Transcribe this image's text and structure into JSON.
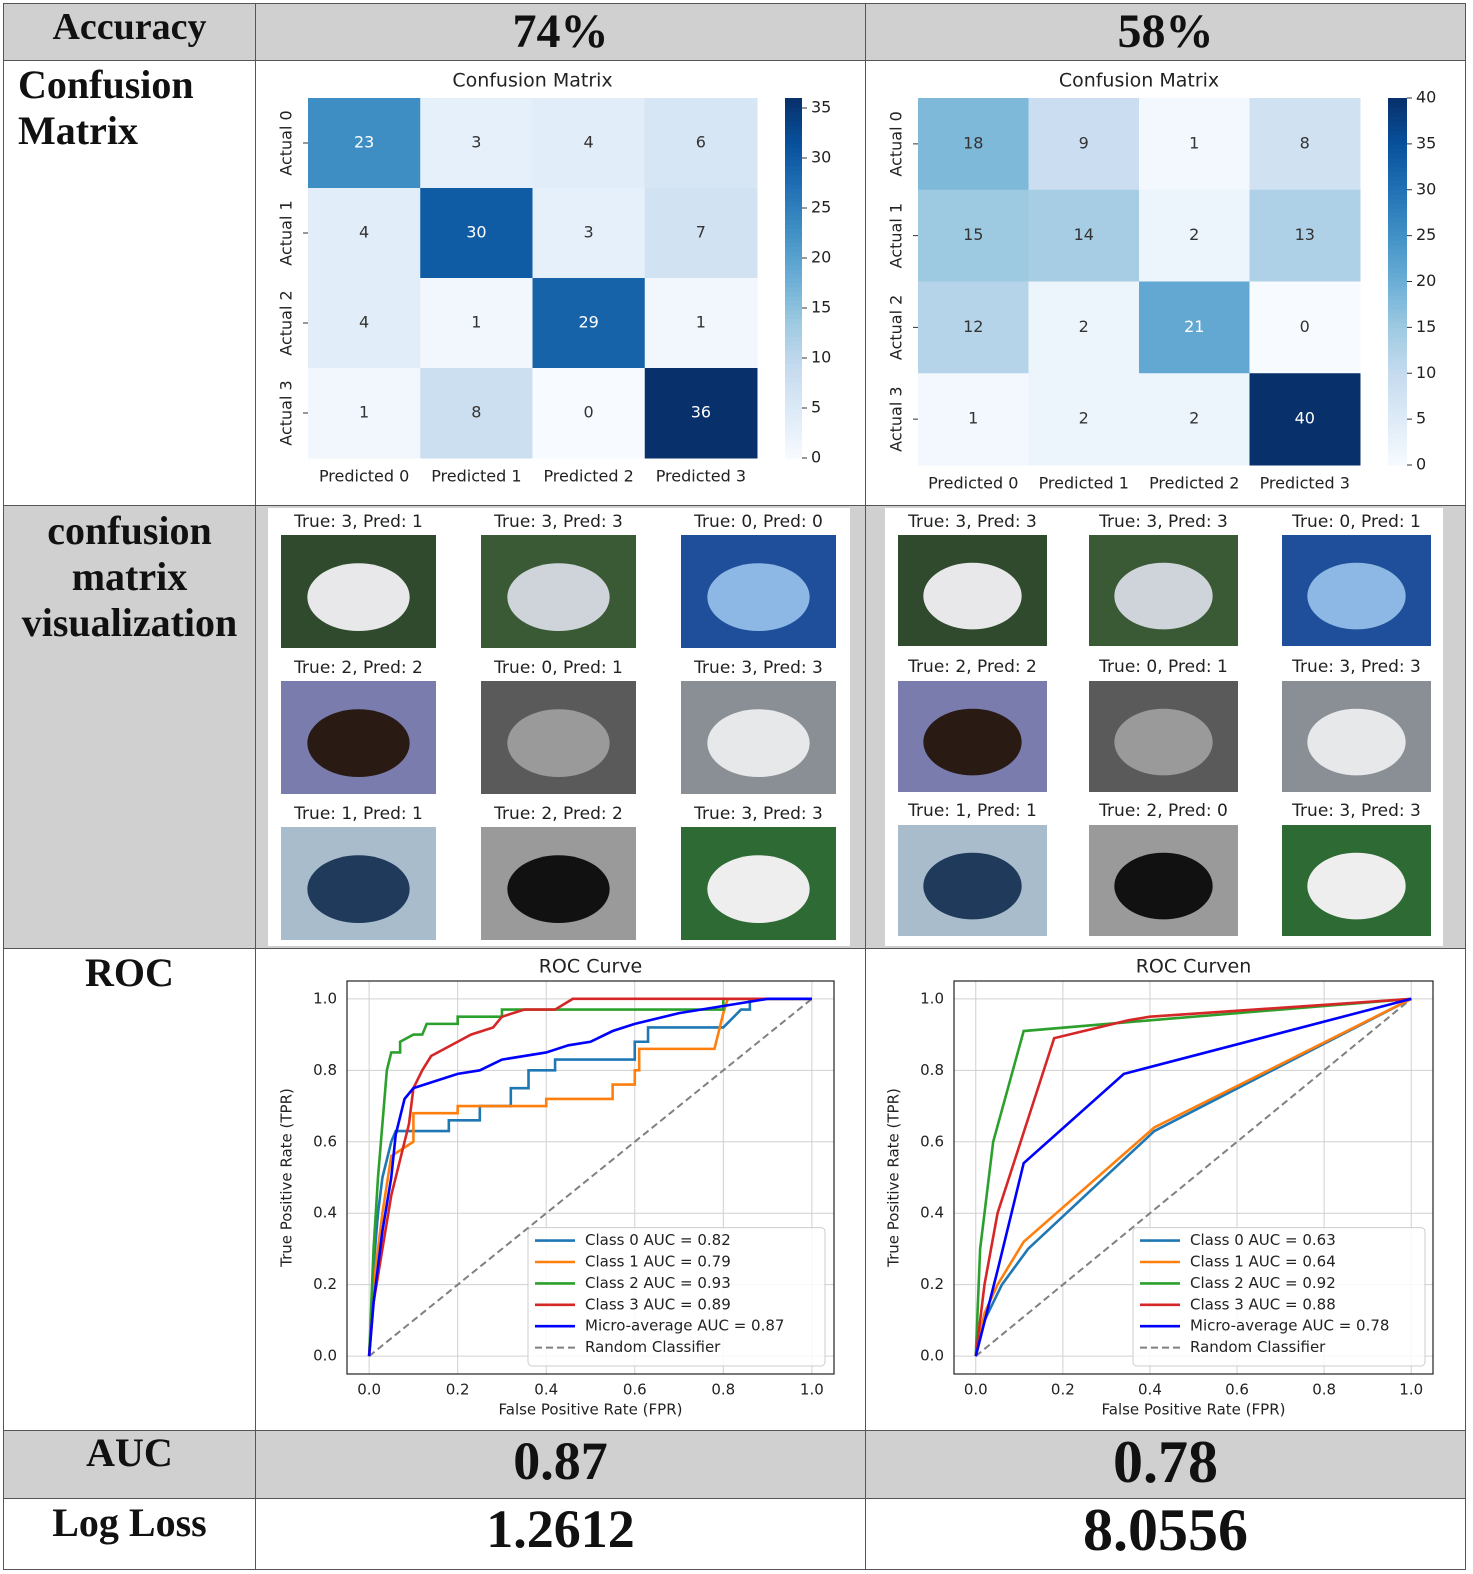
{
  "table": {
    "rows": [
      [
        "Accuracy",
        "74%",
        "58%"
      ],
      [
        "Confusion Matrix"
      ],
      [
        "confusion matrix visualization"
      ],
      [
        "ROC"
      ],
      [
        "AUC",
        "0.87",
        "0.78"
      ],
      [
        "Log Loss",
        "1.2612",
        "8.0556"
      ]
    ]
  },
  "galleries": [
    {
      "titles": [
        "True: 3, Pred: 1",
        "True: 3, Pred: 3",
        "True: 0, Pred: 0",
        "True: 2, Pred: 2",
        "True: 0, Pred: 1",
        "True: 3, Pred: 3",
        "True: 1, Pred: 1",
        "True: 2, Pred: 2",
        "True: 3, Pred: 3"
      ]
    },
    {
      "titles": [
        "True: 3, Pred: 3",
        "True: 3, Pred: 3",
        "True: 0, Pred: 1",
        "True: 2, Pred: 2",
        "True: 0, Pred: 1",
        "True: 3, Pred: 3",
        "True: 1, Pred: 1",
        "True: 2, Pred: 0",
        "True: 3, Pred: 3"
      ]
    }
  ],
  "chart_data": [
    {
      "type": "heatmap",
      "title": "Confusion Matrix",
      "x_categories": [
        "Predicted 0",
        "Predicted 1",
        "Predicted 2",
        "Predicted 3"
      ],
      "y_categories": [
        "Actual 0",
        "Actual 1",
        "Actual 2",
        "Actual 3"
      ],
      "values": [
        [
          23,
          3,
          4,
          6
        ],
        [
          4,
          30,
          3,
          7
        ],
        [
          4,
          1,
          29,
          1
        ],
        [
          1,
          8,
          0,
          36
        ]
      ],
      "colorbar_lim": [
        0,
        36
      ],
      "colorbar_ticks": [
        0,
        5,
        10,
        15,
        20,
        25,
        30,
        35
      ],
      "colormap": [
        "#f7fbff",
        "#deebf7",
        "#c6dbef",
        "#9ecae1",
        "#6baed6",
        "#4292c6",
        "#2171b5",
        "#08519c",
        "#08306b"
      ]
    },
    {
      "type": "heatmap",
      "title": "Confusion Matrix",
      "x_categories": [
        "Predicted 0",
        "Predicted 1",
        "Predicted 2",
        "Predicted 3"
      ],
      "y_categories": [
        "Actual 0",
        "Actual 1",
        "Actual 2",
        "Actual 3"
      ],
      "values": [
        [
          18,
          9,
          1,
          8
        ],
        [
          15,
          14,
          2,
          13
        ],
        [
          12,
          2,
          21,
          0
        ],
        [
          1,
          2,
          2,
          40
        ]
      ],
      "colorbar_lim": [
        0,
        40
      ],
      "colorbar_ticks": [
        0,
        5,
        10,
        15,
        20,
        25,
        30,
        35,
        40
      ],
      "colormap": [
        "#f7fbff",
        "#deebf7",
        "#c6dbef",
        "#9ecae1",
        "#6baed6",
        "#4292c6",
        "#2171b5",
        "#08519c",
        "#08306b"
      ]
    },
    {
      "type": "line",
      "title": "ROC Curve",
      "x_label": "False Positive Rate (FPR)",
      "y_label": "True Positive Rate (TPR)",
      "xlim": [
        -0.05,
        1.05
      ],
      "ylim": [
        -0.05,
        1.05
      ],
      "xticks": [
        {
          "value": 0,
          "label": "0.0"
        },
        0.2,
        0.4,
        0.6,
        0.8,
        {
          "value": 1,
          "label": "1.0"
        }
      ],
      "yticks": [
        {
          "value": 0,
          "label": "0.0"
        },
        0.2,
        0.4,
        0.6,
        0.8,
        {
          "value": 1,
          "label": "1.0"
        }
      ],
      "grid": true,
      "legend": "lower right",
      "series": [
        {
          "name": "Class 0 AUC = 0.82",
          "color": "#1f77b4",
          "x": [
            0,
            0.005,
            0.01,
            0.02,
            0.03,
            0.04,
            0.05,
            0.06,
            0.18,
            0.18,
            0.25,
            0.25,
            0.32,
            0.32,
            0.36,
            0.36,
            0.42,
            0.42,
            0.6,
            0.6,
            0.63,
            0.63,
            0.8,
            0.84,
            0.86,
            0.86,
            1
          ],
          "values": [
            0,
            0.1,
            0.25,
            0.4,
            0.5,
            0.55,
            0.6,
            0.63,
            0.63,
            0.66,
            0.66,
            0.7,
            0.7,
            0.75,
            0.75,
            0.8,
            0.8,
            0.83,
            0.83,
            0.88,
            0.88,
            0.92,
            0.92,
            0.97,
            0.97,
            1,
            1
          ]
        },
        {
          "name": "Class 1 AUC = 0.79",
          "color": "#ff7f0e",
          "x": [
            0,
            0.01,
            0.03,
            0.05,
            0.1,
            0.1,
            0.2,
            0.2,
            0.4,
            0.4,
            0.55,
            0.55,
            0.6,
            0.6,
            0.61,
            0.61,
            0.78,
            0.8,
            0.81,
            1
          ],
          "values": [
            0,
            0.2,
            0.4,
            0.56,
            0.6,
            0.68,
            0.68,
            0.7,
            0.7,
            0.72,
            0.72,
            0.76,
            0.76,
            0.8,
            0.8,
            0.86,
            0.86,
            0.96,
            1,
            1
          ]
        },
        {
          "name": "Class 2 AUC = 0.93",
          "color": "#2ca02c",
          "x": [
            0,
            0.01,
            0.02,
            0.03,
            0.04,
            0.05,
            0.07,
            0.07,
            0.1,
            0.12,
            0.13,
            0.2,
            0.2,
            0.3,
            0.3,
            0.8,
            0.8,
            1
          ],
          "values": [
            0,
            0.3,
            0.5,
            0.65,
            0.8,
            0.85,
            0.85,
            0.88,
            0.9,
            0.9,
            0.93,
            0.93,
            0.95,
            0.95,
            0.97,
            0.97,
            1,
            1
          ]
        },
        {
          "name": "Class 3 AUC = 0.89",
          "color": "#d62728",
          "x": [
            0,
            0.01,
            0.03,
            0.05,
            0.07,
            0.09,
            0.1,
            0.12,
            0.14,
            0.17,
            0.2,
            0.23,
            0.28,
            0.3,
            0.35,
            0.42,
            0.46,
            1
          ],
          "values": [
            0,
            0.15,
            0.3,
            0.45,
            0.55,
            0.65,
            0.75,
            0.8,
            0.84,
            0.86,
            0.88,
            0.9,
            0.92,
            0.95,
            0.97,
            0.97,
            1,
            1
          ]
        },
        {
          "name": "Micro-average AUC = 0.87",
          "color": "#0000ff",
          "x": [
            0,
            0.01,
            0.03,
            0.05,
            0.06,
            0.08,
            0.1,
            0.15,
            0.2,
            0.25,
            0.3,
            0.4,
            0.45,
            0.5,
            0.55,
            0.6,
            0.7,
            0.8,
            0.9,
            1
          ],
          "values": [
            0,
            0.15,
            0.35,
            0.5,
            0.62,
            0.72,
            0.75,
            0.77,
            0.79,
            0.8,
            0.83,
            0.85,
            0.87,
            0.88,
            0.91,
            0.93,
            0.96,
            0.98,
            1,
            1
          ]
        },
        {
          "name": "Random Classifier",
          "color": "#808080",
          "dashed": true,
          "x": [
            0,
            1
          ],
          "values": [
            0,
            1
          ]
        }
      ]
    },
    {
      "type": "line",
      "title": "ROC Curven",
      "x_label": "False Positive Rate (FPR)",
      "y_label": "True Positive Rate (TPR)",
      "xlim": [
        -0.05,
        1.05
      ],
      "ylim": [
        -0.05,
        1.05
      ],
      "xticks": [
        {
          "value": 0,
          "label": "0.0"
        },
        0.2,
        0.4,
        0.6,
        0.8,
        {
          "value": 1,
          "label": "1.0"
        }
      ],
      "yticks": [
        {
          "value": 0,
          "label": "0.0"
        },
        0.2,
        0.4,
        0.6,
        0.8,
        {
          "value": 1,
          "label": "1.0"
        }
      ],
      "grid": true,
      "legend": "lower right",
      "series": [
        {
          "name": "Class 0 AUC = 0.63",
          "color": "#1f77b4",
          "x": [
            0,
            0.02,
            0.06,
            0.12,
            0.41,
            1
          ],
          "values": [
            0,
            0.1,
            0.2,
            0.3,
            0.63,
            1
          ]
        },
        {
          "name": "Class 1 AUC = 0.64",
          "color": "#ff7f0e",
          "x": [
            0,
            0.02,
            0.05,
            0.11,
            0.41,
            1
          ],
          "values": [
            0,
            0.12,
            0.2,
            0.32,
            0.64,
            1
          ]
        },
        {
          "name": "Class 2 AUC = 0.92",
          "color": "#2ca02c",
          "x": [
            0,
            0.01,
            0.04,
            0.11,
            0.4,
            1
          ],
          "values": [
            0,
            0.3,
            0.6,
            0.91,
            0.94,
            1
          ]
        },
        {
          "name": "Class 3 AUC = 0.88",
          "color": "#d62728",
          "x": [
            0,
            0.02,
            0.05,
            0.18,
            0.35,
            0.4,
            1
          ],
          "values": [
            0,
            0.2,
            0.4,
            0.89,
            0.94,
            0.95,
            1
          ]
        },
        {
          "name": "Micro-average AUC = 0.78",
          "color": "#0000ff",
          "x": [
            0,
            0.05,
            0.11,
            0.34,
            1
          ],
          "values": [
            0,
            0.24,
            0.54,
            0.79,
            1
          ]
        },
        {
          "name": "Random Classifier",
          "color": "#808080",
          "dashed": true,
          "x": [
            0,
            1
          ],
          "values": [
            0,
            1
          ]
        }
      ]
    }
  ]
}
